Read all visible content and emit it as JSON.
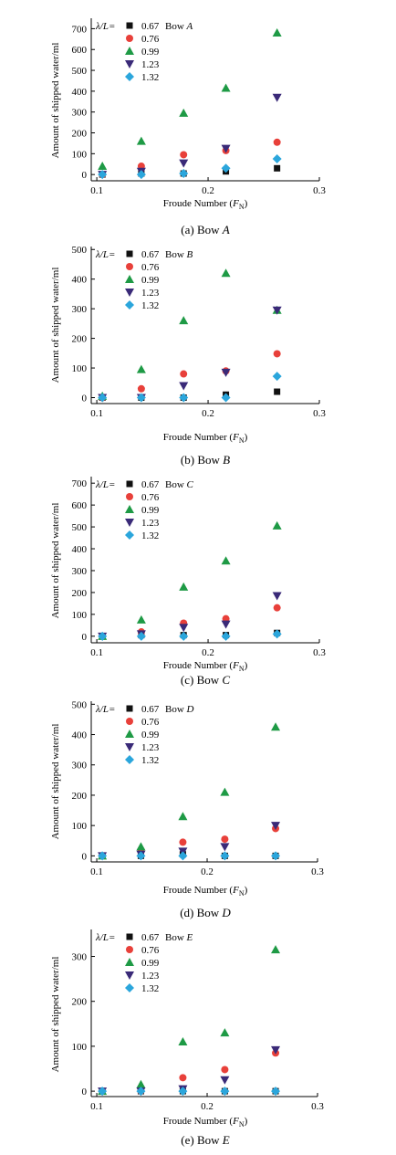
{
  "series_style": [
    {
      "shape": "square",
      "color": "#111111"
    },
    {
      "shape": "circle",
      "color": "#e8403a"
    },
    {
      "shape": "triangle-up",
      "color": "#1e9a45"
    },
    {
      "shape": "triangle-down",
      "color": "#3a2a78"
    },
    {
      "shape": "diamond",
      "color": "#2ba6dc"
    }
  ],
  "chart_data": [
    {
      "type": "scatter",
      "title": "",
      "caption_prefix": "(a) Bow ",
      "caption_letter": "A",
      "legend_header": "λ/L=",
      "legend_extra": "Bow ",
      "legend_extra_letter": "A",
      "xlabel_main": "Froude Number (",
      "xlabel_var": "F",
      "xlabel_sub": "N",
      "xlabel_end": ")",
      "ylabel": "Amount of shipped water/ml",
      "xlim": [
        0.095,
        0.3
      ],
      "ylim": [
        -30,
        750
      ],
      "xticks": [
        "0.1",
        "0.2",
        "0.3"
      ],
      "yticks": [
        0,
        100,
        200,
        300,
        400,
        500,
        600,
        700
      ],
      "x": [
        0.105,
        0.14,
        0.178,
        0.216,
        0.262
      ],
      "series": [
        {
          "name": "0.67",
          "values": [
            0,
            5,
            5,
            15,
            30
          ]
        },
        {
          "name": "0.76",
          "values": [
            0,
            40,
            95,
            115,
            155
          ]
        },
        {
          "name": "0.99",
          "values": [
            40,
            160,
            295,
            415,
            680
          ]
        },
        {
          "name": "1.23",
          "values": [
            0,
            15,
            55,
            125,
            370
          ]
        },
        {
          "name": "1.32",
          "values": [
            0,
            0,
            5,
            30,
            75
          ]
        }
      ]
    },
    {
      "type": "scatter",
      "title": "",
      "caption_prefix": "(b) Bow ",
      "caption_letter": "B",
      "legend_header": "λ/L=",
      "legend_extra": "Bow ",
      "legend_extra_letter": "B",
      "xlabel_main": "Froude Number (",
      "xlabel_var": "F",
      "xlabel_sub": "N",
      "xlabel_end": ")",
      "ylabel": "Amount of shipped water/ml",
      "xlim": [
        0.095,
        0.3
      ],
      "ylim": [
        -20,
        510
      ],
      "xticks": [
        "0.1",
        "0.2",
        "0.3"
      ],
      "yticks": [
        0,
        100,
        200,
        300,
        400,
        500
      ],
      "x": [
        0.105,
        0.14,
        0.178,
        0.216,
        0.262
      ],
      "series": [
        {
          "name": "0.67",
          "values": [
            0,
            0,
            0,
            10,
            20
          ]
        },
        {
          "name": "0.76",
          "values": [
            0,
            30,
            80,
            90,
            148
          ]
        },
        {
          "name": "0.99",
          "values": [
            5,
            95,
            260,
            420,
            295
          ]
        },
        {
          "name": "1.23",
          "values": [
            0,
            0,
            40,
            85,
            295
          ]
        },
        {
          "name": "1.32",
          "values": [
            0,
            0,
            0,
            0,
            72
          ]
        }
      ]
    },
    {
      "type": "scatter",
      "title": "",
      "caption_prefix": "(c) Bow ",
      "caption_letter": "C",
      "legend_header": "λ/L=",
      "legend_extra": "Bow ",
      "legend_extra_letter": "C",
      "xlabel_main": "Froude Number (",
      "xlabel_var": "F",
      "xlabel_sub": "N",
      "xlabel_end": ")",
      "ylabel": "Amount of shipped water/ml",
      "xlim": [
        0.095,
        0.3
      ],
      "ylim": [
        -30,
        730
      ],
      "xticks": [
        "0.1",
        "0.2",
        "0.3"
      ],
      "yticks": [
        0,
        100,
        200,
        300,
        400,
        500,
        600,
        700
      ],
      "x": [
        0.105,
        0.14,
        0.178,
        0.216,
        0.262
      ],
      "series": [
        {
          "name": "0.67",
          "values": [
            0,
            5,
            5,
            5,
            15
          ]
        },
        {
          "name": "0.76",
          "values": [
            0,
            20,
            60,
            80,
            130
          ]
        },
        {
          "name": "0.99",
          "values": [
            0,
            75,
            225,
            345,
            505
          ]
        },
        {
          "name": "1.23",
          "values": [
            0,
            10,
            40,
            55,
            185
          ]
        },
        {
          "name": "1.32",
          "values": [
            0,
            0,
            0,
            0,
            10
          ]
        }
      ]
    },
    {
      "type": "scatter",
      "title": "",
      "caption_prefix": "(d) Bow ",
      "caption_letter": "D",
      "legend_header": "λ/L=",
      "legend_extra": "Bow ",
      "legend_extra_letter": "D",
      "xlabel_main": "Froude Number (",
      "xlabel_var": "F",
      "xlabel_sub": "N",
      "xlabel_end": ")",
      "ylabel": "Amount of shipped water/ml",
      "xlim": [
        0.095,
        0.3
      ],
      "ylim": [
        -20,
        510
      ],
      "xticks": [
        "0.1",
        "0.2",
        "0.3"
      ],
      "yticks": [
        0,
        100,
        200,
        300,
        400,
        500
      ],
      "x": [
        0.105,
        0.14,
        0.178,
        0.216,
        0.262
      ],
      "series": [
        {
          "name": "0.67",
          "values": [
            0,
            0,
            5,
            0,
            0
          ]
        },
        {
          "name": "0.76",
          "values": [
            0,
            15,
            45,
            55,
            90
          ]
        },
        {
          "name": "0.99",
          "values": [
            0,
            30,
            130,
            210,
            425
          ]
        },
        {
          "name": "1.23",
          "values": [
            0,
            5,
            15,
            30,
            100
          ]
        },
        {
          "name": "1.32",
          "values": [
            0,
            0,
            0,
            0,
            0
          ]
        }
      ]
    },
    {
      "type": "scatter",
      "title": "",
      "caption_prefix": "(e) Bow ",
      "caption_letter": "E",
      "legend_header": "λ/L=",
      "legend_extra": "Bow ",
      "legend_extra_letter": "E",
      "xlabel_main": "Froude Number (",
      "xlabel_var": "F",
      "xlabel_sub": "N",
      "xlabel_end": ")",
      "ylabel": "Amount of shipped water/ml",
      "xlim": [
        0.095,
        0.3
      ],
      "ylim": [
        -12,
        360
      ],
      "xticks": [
        "0.1",
        "0.2",
        "0.3"
      ],
      "yticks": [
        0,
        100,
        200,
        300
      ],
      "x": [
        0.105,
        0.14,
        0.178,
        0.216,
        0.262
      ],
      "series": [
        {
          "name": "0.67",
          "values": [
            0,
            0,
            0,
            0,
            0
          ]
        },
        {
          "name": "0.76",
          "values": [
            0,
            0,
            30,
            48,
            85
          ]
        },
        {
          "name": "0.99",
          "values": [
            0,
            15,
            110,
            130,
            315
          ]
        },
        {
          "name": "1.23",
          "values": [
            0,
            0,
            5,
            25,
            92
          ]
        },
        {
          "name": "1.32",
          "values": [
            0,
            0,
            0,
            0,
            0
          ]
        }
      ]
    }
  ]
}
